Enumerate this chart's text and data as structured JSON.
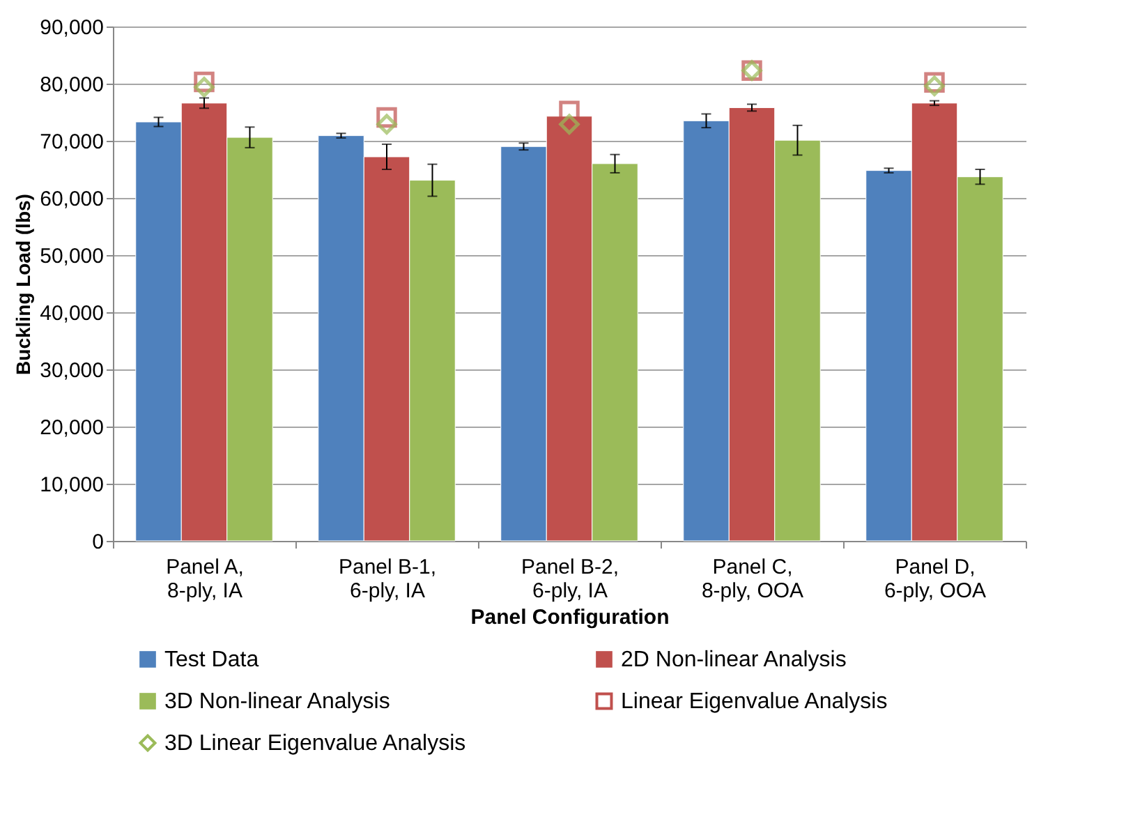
{
  "chart_data": {
    "type": "bar",
    "xlabel": "Panel Configuration",
    "ylabel": "Buckling Load (lbs)",
    "categories": [
      "Panel A, 8-ply, IA",
      "Panel B-1, 6-ply, IA",
      "Panel B-2, 6-ply, IA",
      "Panel C, 8-ply, OOA",
      "Panel D, 6-ply, OOA"
    ],
    "series": [
      {
        "name": "Test Data",
        "color": "#4f81bd",
        "values": [
          73300,
          70900,
          69000,
          73500,
          64800
        ],
        "errors": [
          800,
          400,
          600,
          1200,
          400
        ]
      },
      {
        "name": "2D Non-linear Analysis",
        "color": "#c0504d",
        "values": [
          76600,
          67200,
          74300,
          75800,
          76600
        ],
        "errors": [
          900,
          2200,
          null,
          600,
          400
        ]
      },
      {
        "name": "3D Non-linear Analysis",
        "color": "#9bbb59",
        "values": [
          70600,
          63100,
          66000,
          70100,
          63700
        ],
        "errors": [
          1800,
          2800,
          1600,
          2600,
          1300
        ]
      },
      {
        "name": "Linear Eigenvalue Analysis",
        "type": "scatter",
        "marker": "square",
        "color": "#c0504d",
        "values": [
          80300,
          74100,
          75200,
          82300,
          80200
        ]
      },
      {
        "name": "3D Linear Eigenvalue Analysis",
        "type": "scatter",
        "marker": "diamond",
        "color": "#9bbb59",
        "values": [
          79400,
          72900,
          72900,
          82300,
          79600
        ]
      }
    ],
    "ylim": [
      0,
      90000
    ],
    "yticks": [
      0,
      {
        "value": 10000,
        "label": "10,000"
      },
      {
        "value": 20000,
        "label": "20,000"
      },
      {
        "value": 30000,
        "label": "30,000"
      },
      {
        "value": 40000,
        "label": "40,000"
      },
      {
        "value": 50000,
        "label": "50,000"
      },
      {
        "value": 60000,
        "label": "60,000"
      },
      {
        "value": 70000,
        "label": "70,000"
      },
      {
        "value": 80000,
        "label": "80,000"
      },
      {
        "value": 90000,
        "label": "90,000"
      }
    ],
    "grid": "y",
    "legend": "bottom"
  }
}
